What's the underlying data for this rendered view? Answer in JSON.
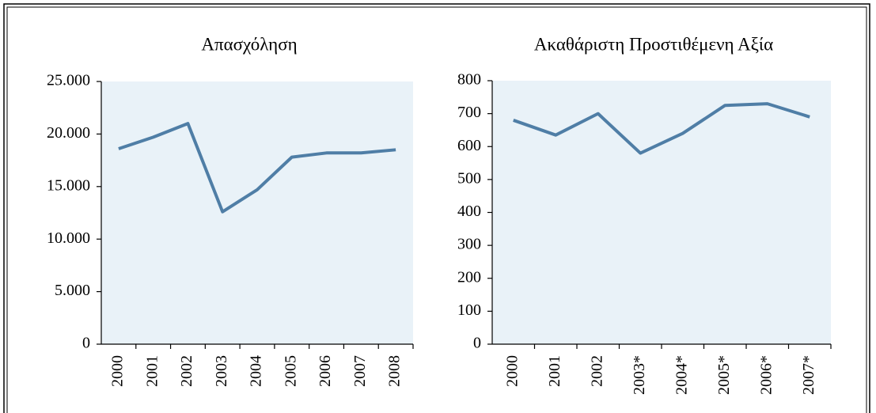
{
  "chart_data": [
    {
      "type": "line",
      "title": "Απασχόληση",
      "categories": [
        "2000",
        "2001",
        "2002",
        "2003",
        "2004",
        "2005",
        "2006",
        "2007",
        "2008"
      ],
      "series": [
        {
          "name": null,
          "color": "#4f7ea6",
          "values": [
            18600,
            19700,
            21000,
            12600,
            14700,
            17800,
            18200,
            18200,
            18500
          ]
        }
      ],
      "ylim": [
        0,
        25000
      ],
      "yticks": [
        0,
        {
          "value": 5000,
          "label": "5.000"
        },
        {
          "value": 10000,
          "label": "10.000"
        },
        {
          "value": 15000,
          "label": "15.000"
        },
        {
          "value": 20000,
          "label": "20.000"
        },
        {
          "value": 25000,
          "label": "25.000"
        }
      ],
      "grid": false
    },
    {
      "type": "line",
      "title": "Ακαθάριστη Προστιθέμενη Αξία",
      "categories": [
        "2000",
        "2001",
        "2002",
        "2003*",
        "2004*",
        "2005*",
        "2006*",
        "2007*"
      ],
      "series": [
        {
          "name": null,
          "color": "#4f7ea6",
          "values": [
            680,
            635,
            700,
            580,
            640,
            725,
            730,
            690
          ]
        }
      ],
      "ylim": [
        0,
        800
      ],
      "yticks": [
        0,
        100,
        200,
        300,
        400,
        500,
        600,
        700,
        800
      ],
      "grid": false
    }
  ]
}
